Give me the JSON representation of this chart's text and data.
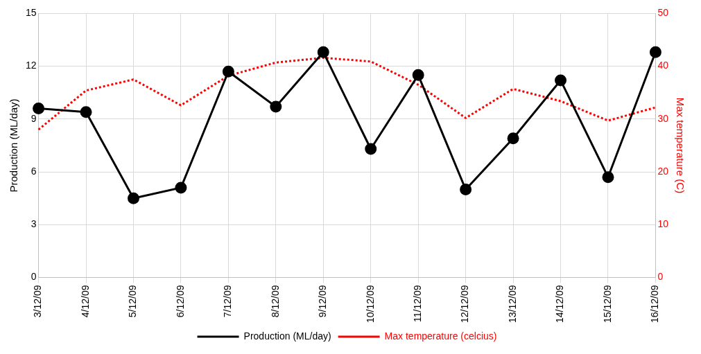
{
  "chart_data": {
    "type": "line",
    "categories": [
      "3/12/09",
      "4/12/09",
      "5/12/09",
      "6/12/09",
      "7/12/09",
      "8/12/09",
      "9/12/09",
      "10/12/09",
      "11/12/09",
      "12/12/09",
      "13/12/09",
      "14/12/09",
      "15/12/09",
      "16/12/09"
    ],
    "ylabel": "Production (ML/day)",
    "y2label": "Max temperature (C)",
    "series": [
      {
        "name": "Production (ML/day)",
        "color": "#000000",
        "marker": "circle",
        "line_style": "solid",
        "values": [
          9.6,
          9.4,
          4.5,
          5.1,
          11.7,
          9.7,
          12.8,
          7.3,
          11.5,
          5.0,
          7.9,
          11.2,
          5.7,
          12.8
        ]
      },
      {
        "name": "Max temperature (celcius)",
        "color": "#ff0000",
        "marker": "none",
        "line_style": "dotted",
        "axis": "y2",
        "values": [
          28.0,
          35.4,
          37.5,
          32.6,
          38.2,
          40.7,
          41.6,
          40.9,
          36.5,
          30.2,
          35.7,
          33.4,
          29.7,
          32.2
        ]
      }
    ],
    "ylim": [
      0,
      15
    ],
    "yticks": [
      0,
      3,
      6,
      9,
      12,
      15
    ],
    "y2lim": [
      0,
      50
    ],
    "y2ticks": [
      0,
      10,
      20,
      30,
      40,
      50
    ],
    "grid": true,
    "legend": "bottom"
  }
}
